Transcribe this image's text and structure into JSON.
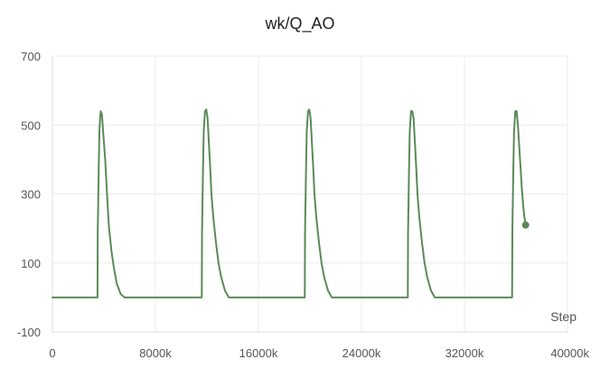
{
  "chart_data": {
    "type": "line",
    "title": "wk/Q_AO",
    "xlabel": "Step",
    "ylabel": "",
    "xlim": [
      0,
      40000
    ],
    "ylim": [
      -100,
      700
    ],
    "x_ticks": [
      0,
      8000,
      16000,
      24000,
      32000,
      40000
    ],
    "x_tick_labels": [
      "0",
      "8000k",
      "16000k",
      "24000k",
      "32000k",
      "40000k"
    ],
    "y_ticks": [
      -100,
      100,
      300,
      500,
      700
    ],
    "y_tick_labels": [
      "-100",
      "100",
      "300",
      "500",
      "700"
    ],
    "grid": true,
    "legend": "none",
    "line_color": "#5b8a57",
    "series": [
      {
        "values_x": [
          0,
          3500,
          3520,
          3600,
          3650,
          3700,
          3750,
          3850,
          3900,
          4000,
          4100,
          4200,
          4300,
          4400,
          4600,
          4800,
          5000,
          5300,
          5600,
          5800,
          11600,
          11620,
          11700,
          11750,
          11850,
          11950,
          12050,
          12150,
          12250,
          12350,
          12500,
          12700,
          12900,
          13100,
          13400,
          13700,
          13900,
          19600,
          19620,
          19700,
          19750,
          19850,
          19950,
          20050,
          20150,
          20250,
          20350,
          20500,
          20700,
          20900,
          21100,
          21400,
          21700,
          21900,
          27600,
          27620,
          27700,
          27750,
          27850,
          27950,
          28050,
          28150,
          28250,
          28350,
          28500,
          28700,
          28900,
          29100,
          29400,
          29700,
          29900,
          35700,
          35720,
          35800,
          35850,
          35950,
          36050,
          36150,
          36250,
          36350,
          36450,
          36550,
          36650,
          36750
        ],
        "values_y": [
          0,
          0,
          190,
          380,
          480,
          520,
          540,
          530,
          500,
          450,
          400,
          330,
          260,
          200,
          130,
          80,
          40,
          10,
          0,
          0,
          0,
          190,
          380,
          480,
          540,
          545,
          520,
          450,
          380,
          300,
          230,
          160,
          100,
          60,
          20,
          0,
          0,
          0,
          190,
          380,
          480,
          540,
          545,
          520,
          450,
          380,
          300,
          230,
          160,
          100,
          60,
          20,
          0,
          0,
          0,
          190,
          380,
          480,
          540,
          540,
          520,
          450,
          380,
          300,
          230,
          160,
          100,
          60,
          20,
          0,
          0,
          0,
          190,
          380,
          480,
          540,
          540,
          500,
          440,
          380,
          320,
          270,
          235,
          210
        ]
      }
    ]
  }
}
